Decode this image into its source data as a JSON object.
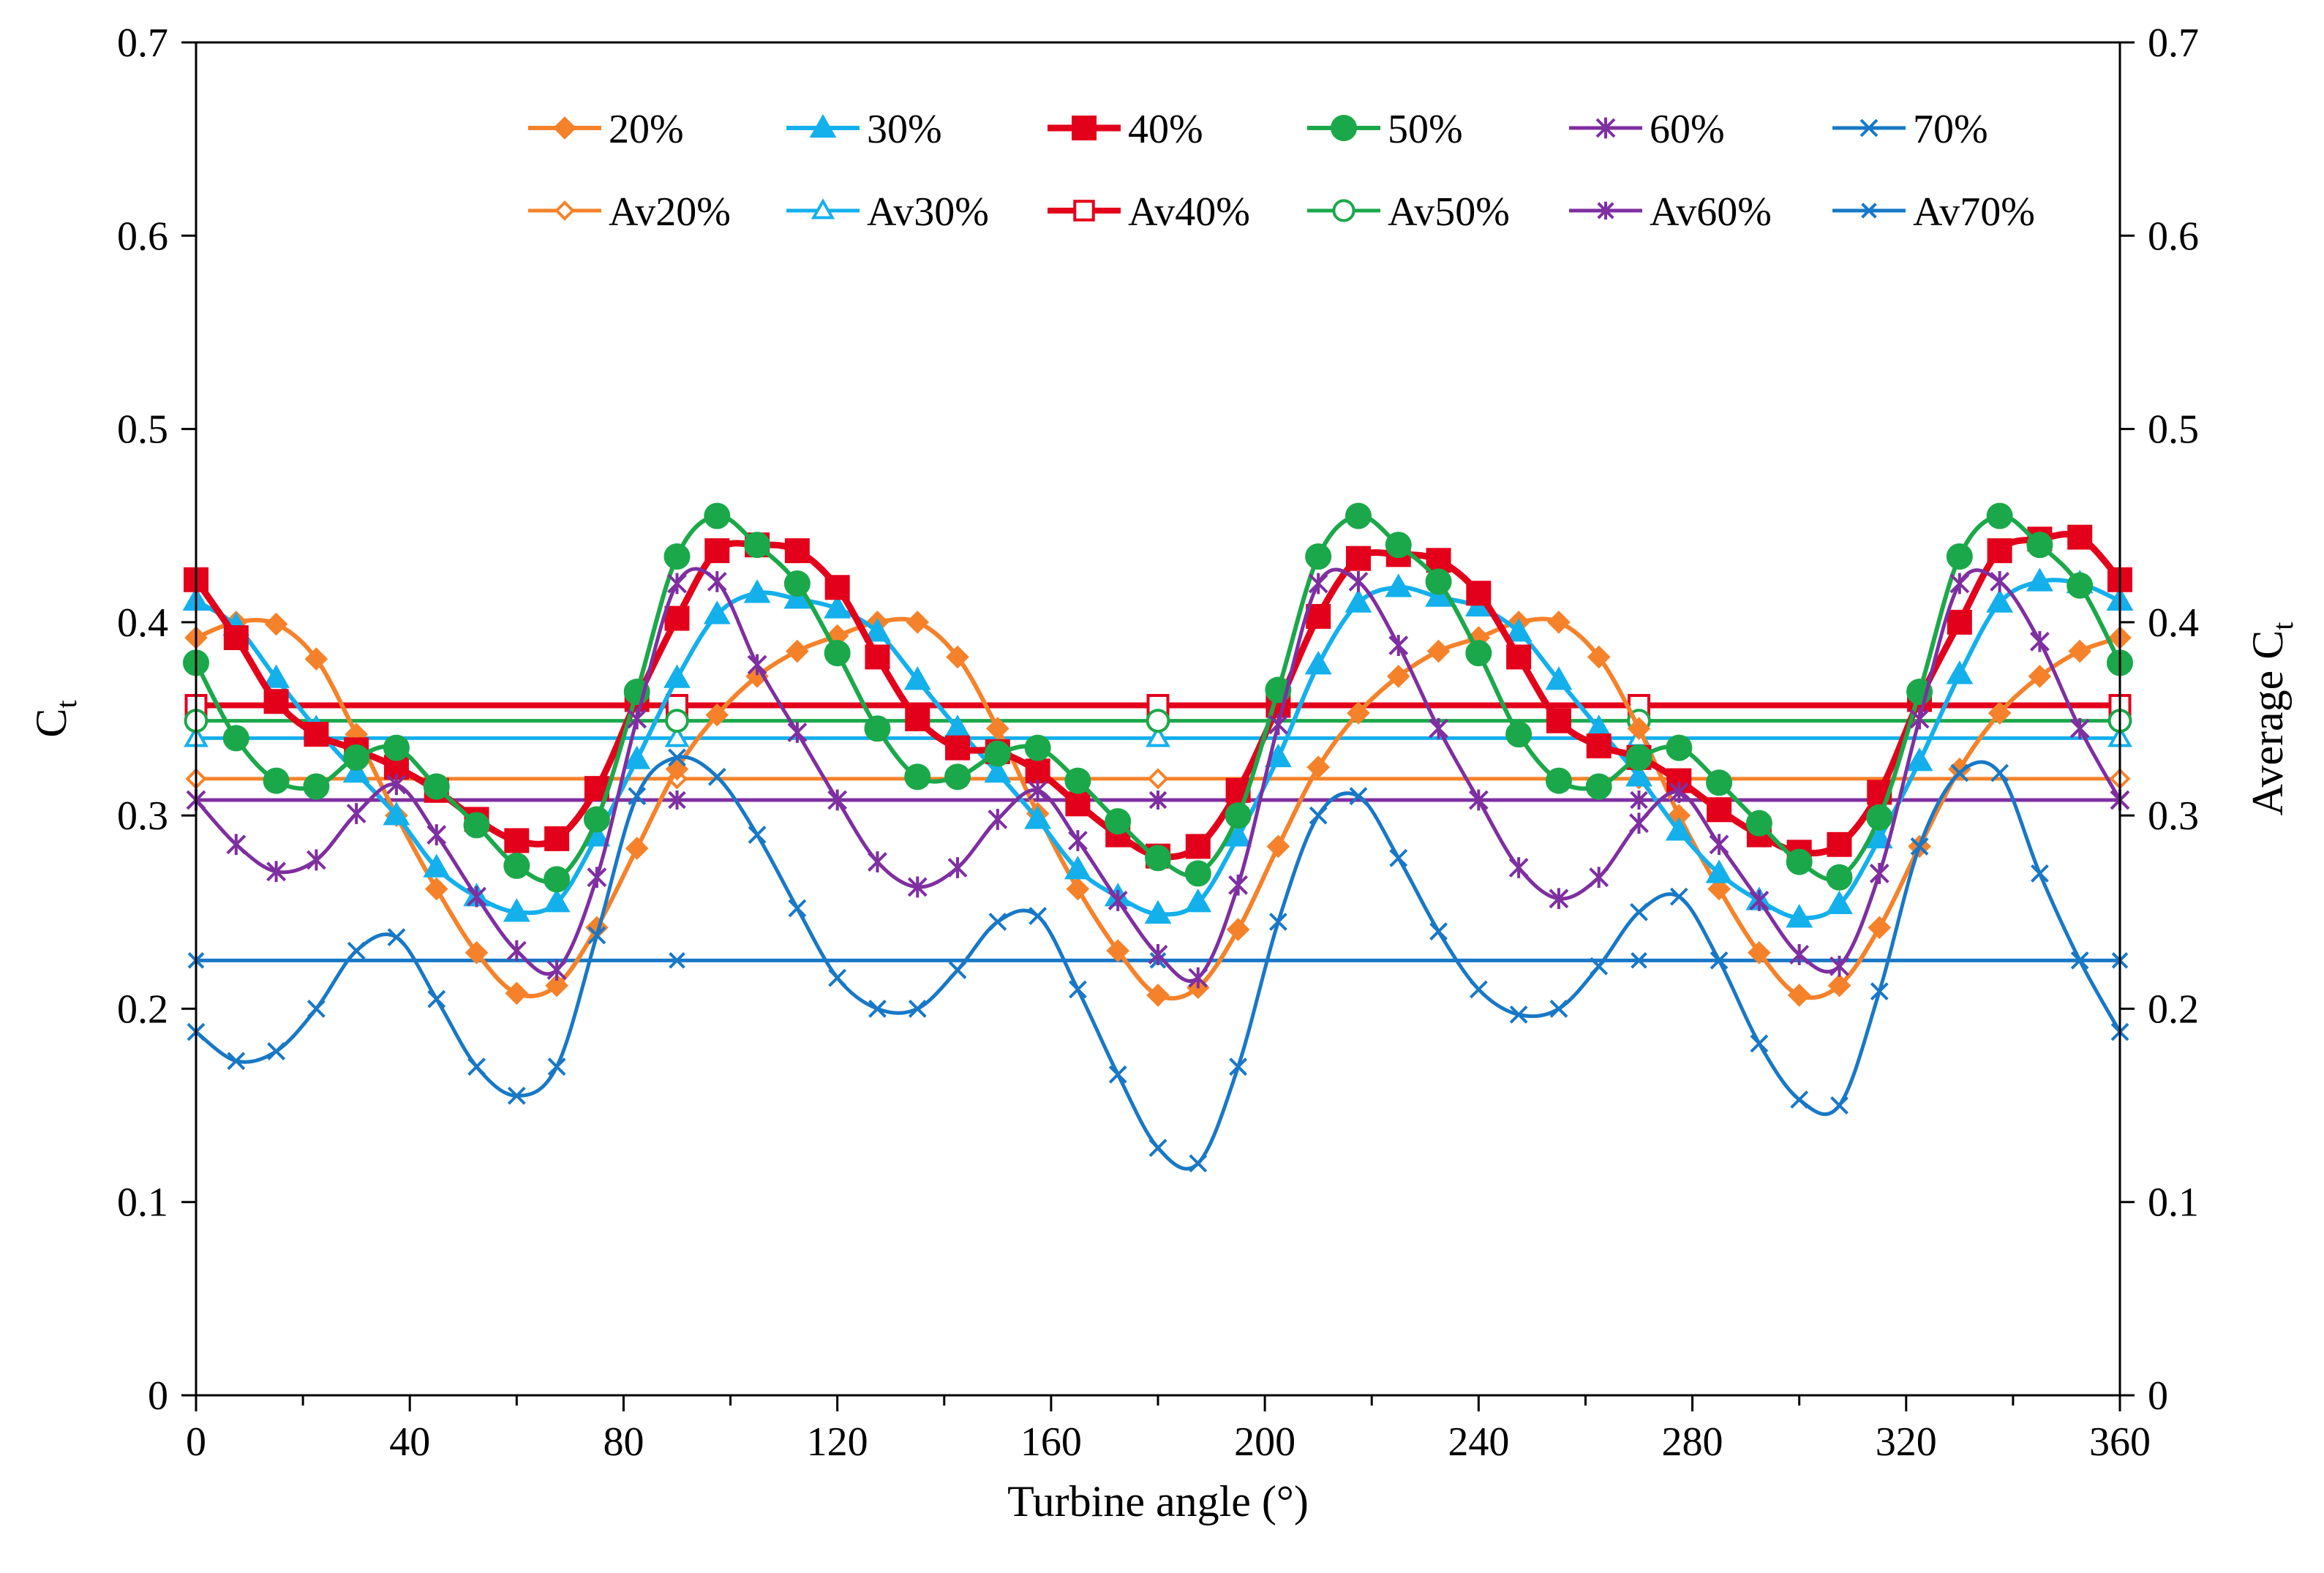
{
  "chart_data": {
    "type": "line",
    "xlabel": "Turbine angle (°)",
    "ylabel": "C",
    "ylabel_sub": "t",
    "y2label": "Average C",
    "y2label_sub": "t",
    "xlim": [
      0,
      360
    ],
    "ylim": [
      0,
      0.7
    ],
    "y2lim": [
      0,
      0.7
    ],
    "x_ticks": [
      0,
      40,
      80,
      120,
      160,
      200,
      240,
      280,
      320,
      360
    ],
    "x_tick_labels": [
      "0",
      "40",
      "80",
      "120",
      "160",
      "200",
      "240",
      "280",
      "320",
      "360"
    ],
    "y_ticks": [
      0,
      0.1,
      0.2,
      0.3,
      0.4,
      0.5,
      0.6,
      0.7
    ],
    "y_tick_labels": [
      "0",
      "0.1",
      "0.2",
      "0.3",
      "0.4",
      "0.5",
      "0.6",
      "0.7"
    ],
    "y2_tick_labels": [
      "0",
      "0.1",
      "0.2",
      "0.3",
      "0.4",
      "0.5",
      "0.6",
      "0.7"
    ],
    "grid": false,
    "legend_position": "top",
    "x": [
      0,
      7.5,
      15,
      22.5,
      30,
      37.5,
      45,
      52.5,
      60,
      67.5,
      75,
      82.5,
      90,
      97.5,
      105,
      112.5,
      120,
      127.5,
      135,
      142.5,
      150,
      157.5,
      165,
      172.5,
      180,
      187.5,
      195,
      202.5,
      210,
      217.5,
      225,
      232.5,
      240,
      247.5,
      255,
      262.5,
      270,
      277.5,
      285,
      292.5,
      300,
      307.5,
      315,
      322.5,
      330,
      337.5,
      345,
      352.5,
      360
    ],
    "series": [
      {
        "name": "20%",
        "color": "#F5822A",
        "marker": "diamond",
        "filled": true,
        "width": 6,
        "values": [
          0.392,
          0.4,
          0.399,
          0.381,
          0.342,
          0.3,
          0.262,
          0.229,
          0.208,
          0.212,
          0.242,
          0.283,
          0.324,
          0.352,
          0.372,
          0.385,
          0.393,
          0.4,
          0.4,
          0.382,
          0.345,
          0.301,
          0.262,
          0.23,
          0.207,
          0.211,
          0.241,
          0.284,
          0.325,
          0.353,
          0.372,
          0.385,
          0.392,
          0.4,
          0.4,
          0.382,
          0.345,
          0.3,
          0.262,
          0.229,
          0.207,
          0.212,
          0.242,
          0.284,
          0.324,
          0.353,
          0.372,
          0.385,
          0.392
        ]
      },
      {
        "name": "30%",
        "color": "#14B0EC",
        "marker": "triangle",
        "filled": true,
        "width": 6,
        "values": [
          0.411,
          0.398,
          0.371,
          0.345,
          0.322,
          0.3,
          0.273,
          0.258,
          0.25,
          0.255,
          0.289,
          0.329,
          0.371,
          0.404,
          0.415,
          0.412,
          0.407,
          0.395,
          0.37,
          0.345,
          0.322,
          0.298,
          0.272,
          0.258,
          0.249,
          0.255,
          0.289,
          0.33,
          0.378,
          0.41,
          0.418,
          0.413,
          0.408,
          0.395,
          0.37,
          0.345,
          0.32,
          0.292,
          0.27,
          0.256,
          0.247,
          0.254,
          0.288,
          0.328,
          0.373,
          0.41,
          0.421,
          0.42,
          0.411
        ]
      },
      {
        "name": "40%",
        "color": "#E3001B",
        "marker": "square",
        "filled": true,
        "width": 9,
        "values": [
          0.422,
          0.392,
          0.359,
          0.342,
          0.334,
          0.325,
          0.313,
          0.298,
          0.287,
          0.288,
          0.314,
          0.36,
          0.402,
          0.437,
          0.44,
          0.437,
          0.418,
          0.382,
          0.35,
          0.335,
          0.333,
          0.323,
          0.306,
          0.29,
          0.279,
          0.284,
          0.313,
          0.357,
          0.403,
          0.433,
          0.435,
          0.432,
          0.415,
          0.382,
          0.349,
          0.336,
          0.33,
          0.318,
          0.303,
          0.29,
          0.281,
          0.285,
          0.312,
          0.36,
          0.4,
          0.437,
          0.443,
          0.444,
          0.422
        ]
      },
      {
        "name": "50%",
        "color": "#1BA84A",
        "marker": "circle",
        "filled": true,
        "width": 6,
        "values": [
          0.379,
          0.34,
          0.318,
          0.315,
          0.33,
          0.335,
          0.315,
          0.295,
          0.274,
          0.267,
          0.298,
          0.364,
          0.434,
          0.455,
          0.44,
          0.42,
          0.384,
          0.345,
          0.32,
          0.32,
          0.332,
          0.335,
          0.318,
          0.297,
          0.278,
          0.27,
          0.3,
          0.365,
          0.434,
          0.455,
          0.44,
          0.421,
          0.384,
          0.342,
          0.318,
          0.315,
          0.33,
          0.335,
          0.317,
          0.296,
          0.276,
          0.268,
          0.299,
          0.364,
          0.434,
          0.455,
          0.44,
          0.419,
          0.379
        ]
      },
      {
        "name": "60%",
        "color": "#7E2FA0",
        "marker": "asterisk",
        "filled": false,
        "width": 5,
        "values": [
          0.308,
          0.285,
          0.271,
          0.277,
          0.301,
          0.316,
          0.29,
          0.258,
          0.23,
          0.22,
          0.268,
          0.35,
          0.42,
          0.421,
          0.378,
          0.343,
          0.308,
          0.276,
          0.263,
          0.273,
          0.298,
          0.313,
          0.287,
          0.256,
          0.228,
          0.216,
          0.264,
          0.347,
          0.42,
          0.421,
          0.388,
          0.345,
          0.308,
          0.273,
          0.257,
          0.268,
          0.296,
          0.312,
          0.285,
          0.256,
          0.228,
          0.222,
          0.27,
          0.35,
          0.42,
          0.421,
          0.39,
          0.345,
          0.308
        ]
      },
      {
        "name": "70%",
        "color": "#1878C6",
        "marker": "x",
        "filled": false,
        "width": 5,
        "values": [
          0.188,
          0.173,
          0.178,
          0.2,
          0.23,
          0.237,
          0.205,
          0.17,
          0.155,
          0.17,
          0.238,
          0.31,
          0.33,
          0.32,
          0.29,
          0.252,
          0.216,
          0.2,
          0.2,
          0.22,
          0.245,
          0.248,
          0.21,
          0.166,
          0.128,
          0.12,
          0.17,
          0.245,
          0.3,
          0.31,
          0.278,
          0.24,
          0.21,
          0.197,
          0.2,
          0.222,
          0.25,
          0.258,
          0.225,
          0.182,
          0.153,
          0.15,
          0.209,
          0.284,
          0.322,
          0.322,
          0.27,
          0.225,
          0.188
        ]
      },
      {
        "name": "Av20%",
        "color": "#F5822A",
        "marker": "diamond",
        "filled": false,
        "width": 5,
        "constant": 0.319,
        "marker_x": [
          0,
          90,
          180,
          270,
          360
        ]
      },
      {
        "name": "Av30%",
        "color": "#14B0EC",
        "marker": "triangle",
        "filled": false,
        "width": 5,
        "constant": 0.34,
        "marker_x": [
          0,
          90,
          180,
          270,
          360
        ]
      },
      {
        "name": "Av40%",
        "color": "#E3001B",
        "marker": "square",
        "filled": false,
        "width": 8,
        "constant": 0.357,
        "marker_x": [
          0,
          90,
          180,
          270,
          360
        ]
      },
      {
        "name": "Av50%",
        "color": "#1BA84A",
        "marker": "circle",
        "filled": false,
        "width": 5,
        "constant": 0.349,
        "marker_x": [
          0,
          90,
          180,
          270,
          360
        ]
      },
      {
        "name": "Av60%",
        "color": "#7E2FA0",
        "marker": "asterisk",
        "filled": false,
        "width": 5,
        "constant": 0.308,
        "marker_x": [
          0,
          90,
          180,
          270,
          360
        ]
      },
      {
        "name": "Av70%",
        "color": "#1878C6",
        "marker": "x",
        "filled": false,
        "width": 5,
        "constant": 0.225,
        "marker_x": [
          0,
          90,
          180,
          270,
          360
        ]
      }
    ]
  }
}
